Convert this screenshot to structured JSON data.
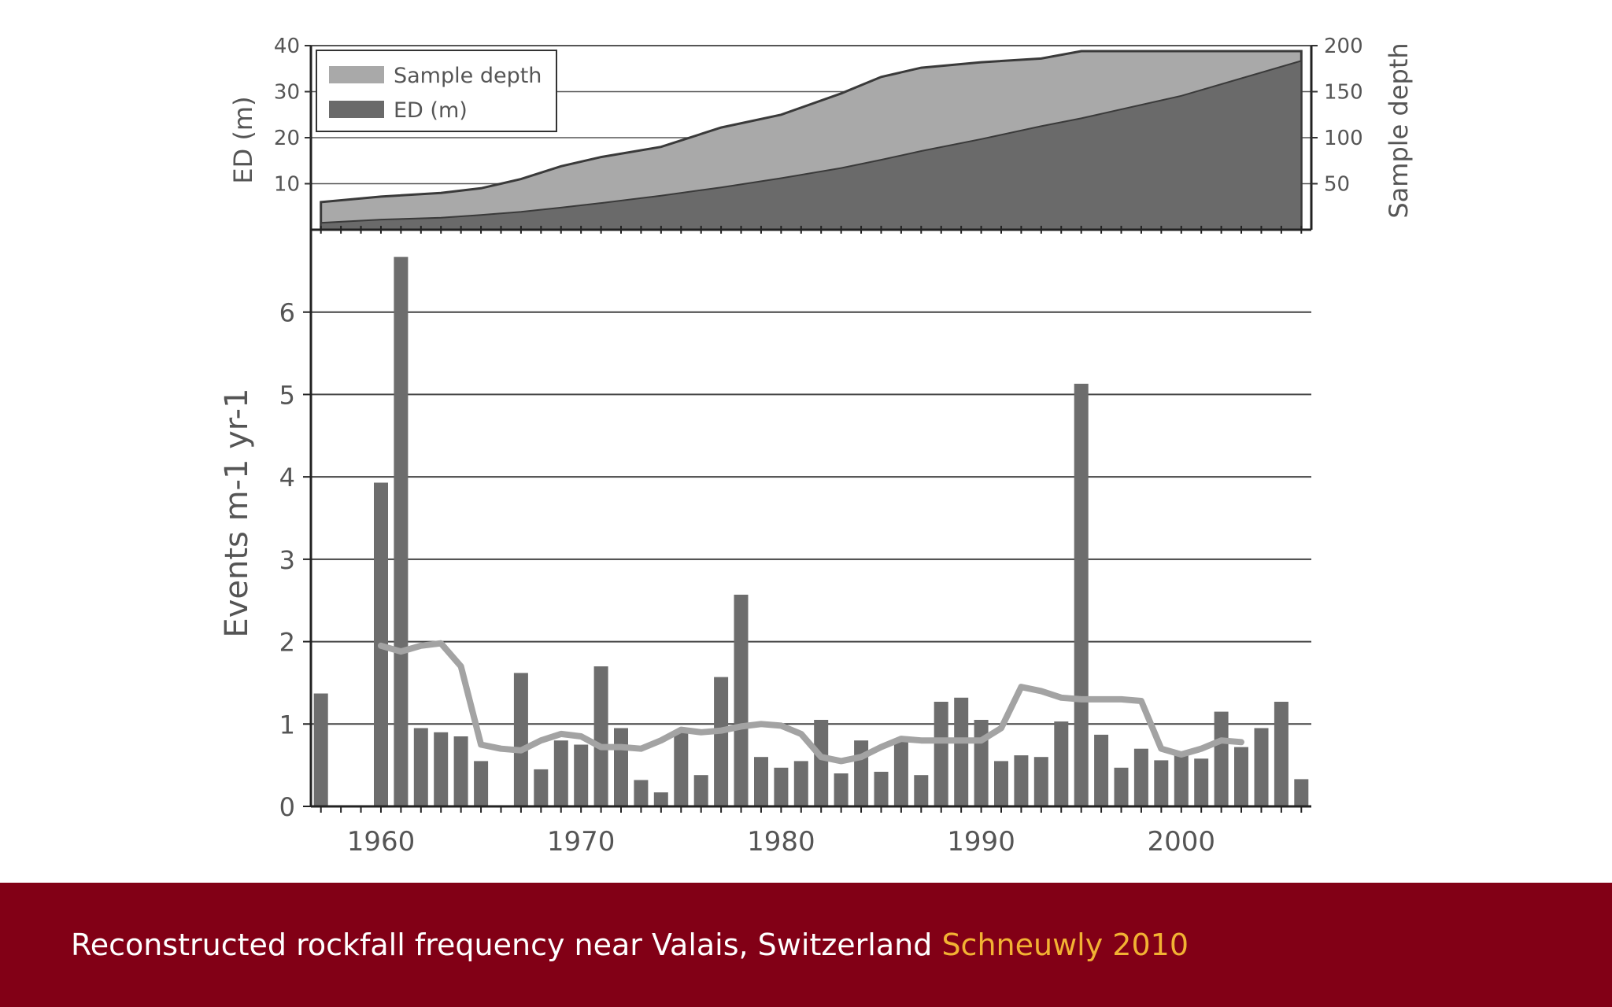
{
  "caption": {
    "text": "Reconstructed rockfall frequency near Valais, Switzerland",
    "source": "Schneuwly 2010",
    "source_color": "#f2b233"
  },
  "colors": {
    "banner": "#820016",
    "bar": "#6d6d6d",
    "sample_depth_fill": "#a9a9a9",
    "ed_fill": "#6a6a6a",
    "smooth_line": "#a3a3a3"
  },
  "chart_data": [
    {
      "type": "area",
      "title": "",
      "ylabel_left": "ED (m)",
      "ylabel_right": "Sample depth",
      "yticks_left": [
        "10",
        "20",
        "30",
        "40"
      ],
      "yticks_right": [
        "50",
        "100",
        "150",
        "200"
      ],
      "ylim_left": [
        0,
        40
      ],
      "ylim_right": [
        0,
        200
      ],
      "grid": true,
      "legend": {
        "placement": "top-left",
        "entries": [
          "Sample depth",
          "ED (m)"
        ]
      },
      "x": [
        1957,
        1960,
        1963,
        1965,
        1967,
        1969,
        1971,
        1974,
        1977,
        1980,
        1983,
        1985,
        1987,
        1990,
        1993,
        1995,
        2000,
        2006
      ],
      "series": [
        {
          "name": "Sample depth",
          "axis": "right",
          "values": [
            30,
            36,
            40,
            45,
            55,
            69,
            79,
            90,
            111,
            125,
            148,
            166,
            176,
            182,
            186,
            194,
            194,
            194
          ]
        },
        {
          "name": "ED (m)",
          "axis": "left",
          "values": [
            1.5,
            2.2,
            2.6,
            3.2,
            3.9,
            4.8,
            5.8,
            7.4,
            9.2,
            11.2,
            13.4,
            15.2,
            17.1,
            19.7,
            22.5,
            24.2,
            29.1,
            36.7
          ]
        }
      ]
    },
    {
      "type": "bar",
      "title": "",
      "xlabel": "",
      "ylabel": "Events m-1 yr-1",
      "xticks": [
        "1960",
        "1970",
        "1980",
        "1990",
        "2000"
      ],
      "yticks": [
        "0",
        "1",
        "2",
        "3",
        "4",
        "5",
        "6"
      ],
      "xlim": [
        1956.5,
        2006.5
      ],
      "ylim": [
        0,
        7
      ],
      "grid": true,
      "years": [
        1957,
        1958,
        1959,
        1960,
        1961,
        1962,
        1963,
        1964,
        1965,
        1966,
        1967,
        1968,
        1969,
        1970,
        1971,
        1972,
        1973,
        1974,
        1975,
        1976,
        1977,
        1978,
        1979,
        1980,
        1981,
        1982,
        1983,
        1984,
        1985,
        1986,
        1987,
        1988,
        1989,
        1990,
        1991,
        1992,
        1993,
        1994,
        1995,
        1996,
        1997,
        1998,
        1999,
        2000,
        2001,
        2002,
        2003,
        2004,
        2005,
        2006
      ],
      "values": [
        1.37,
        0,
        0,
        3.93,
        6.67,
        0.95,
        0.9,
        0.85,
        0.55,
        0,
        1.62,
        0.45,
        0.8,
        0.75,
        1.7,
        0.95,
        0.32,
        0.17,
        0.92,
        0.38,
        1.57,
        2.57,
        0.6,
        0.47,
        0.55,
        1.05,
        0.4,
        0.8,
        0.42,
        0.82,
        0.38,
        1.27,
        1.32,
        1.05,
        0.55,
        0.62,
        0.6,
        1.03,
        5.13,
        0.87,
        0.47,
        0.7,
        0.56,
        0.62,
        0.58,
        1.15,
        0.72,
        0.95,
        1.27,
        0.33
      ],
      "smoothed": {
        "x": [
          1960,
          1961,
          1962,
          1963,
          1964,
          1965,
          1966,
          1967,
          1968,
          1969,
          1970,
          1971,
          1972,
          1973,
          1974,
          1975,
          1976,
          1977,
          1978,
          1979,
          1980,
          1981,
          1982,
          1983,
          1984,
          1985,
          1986,
          1987,
          1988,
          1989,
          1990,
          1991,
          1992,
          1993,
          1994,
          1995,
          1996,
          1997,
          1998,
          1999,
          2000,
          2001,
          2002,
          2003
        ],
        "y": [
          1.95,
          1.88,
          1.95,
          1.98,
          1.7,
          0.75,
          0.7,
          0.68,
          0.8,
          0.88,
          0.85,
          0.72,
          0.72,
          0.7,
          0.8,
          0.93,
          0.9,
          0.92,
          0.97,
          1.0,
          0.98,
          0.88,
          0.6,
          0.55,
          0.6,
          0.72,
          0.82,
          0.8,
          0.8,
          0.8,
          0.8,
          0.95,
          1.45,
          1.4,
          1.32,
          1.3,
          1.3,
          1.3,
          1.28,
          0.7,
          0.63,
          0.7,
          0.8,
          0.78
        ]
      }
    }
  ]
}
